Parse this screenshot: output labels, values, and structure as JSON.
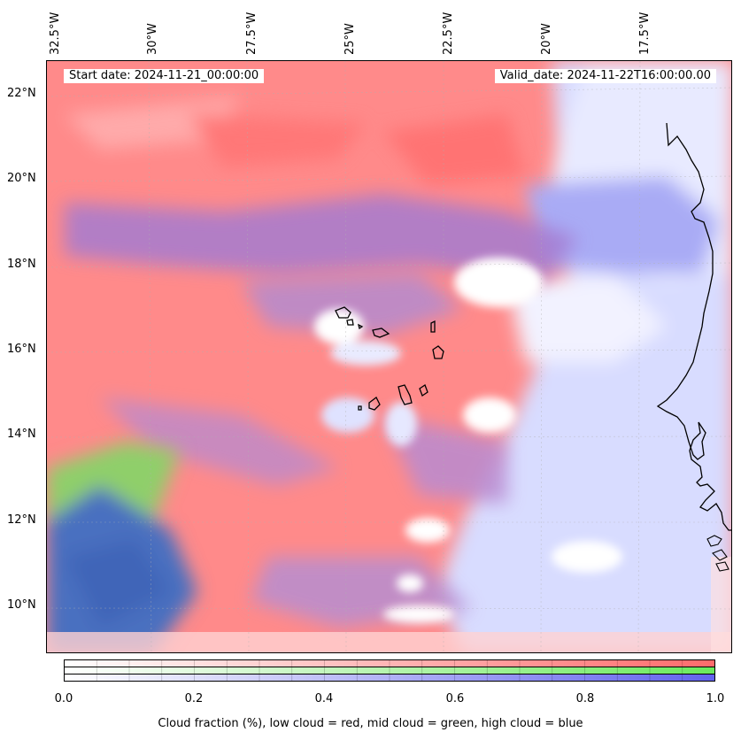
{
  "map": {
    "start_date": "Start date: 2024-11-21_00:00:00",
    "valid_date": "Valid_date: 2024-11-22T16:00:00.00",
    "lon_labels": [
      "32.5°W",
      "30°W",
      "27.5°W",
      "25°W",
      "22.5°W",
      "20°W",
      "17.5°W"
    ],
    "lat_labels": [
      "22°N",
      "20°N",
      "18°N",
      "16°N",
      "14°N",
      "12°N",
      "10°N"
    ],
    "extent": {
      "lon_min": -32.6,
      "lon_max": -15.1,
      "lat_min": 8.9,
      "lat_max": 22.8
    },
    "colors": {
      "low_cloud": "#ff6b6b",
      "mid_cloud": "#8ee86b",
      "high_cloud": "#6b6bf5",
      "coastline": "#000000"
    }
  },
  "colorbar": {
    "tick_labels": [
      "0.0",
      "0.2",
      "0.4",
      "0.6",
      "0.8",
      "1.0"
    ],
    "caption": "Cloud fraction (%), low cloud = red, mid cloud = green, high cloud = blue",
    "range": [
      0.0,
      1.0
    ]
  }
}
